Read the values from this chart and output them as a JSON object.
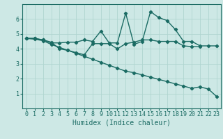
{
  "background_color": "#cde8e5",
  "grid_color": "#b0d5d0",
  "line_color": "#1a6b63",
  "marker": "D",
  "markersize": 2.2,
  "linewidth": 1.0,
  "xlabel": "Humidex (Indice chaleur)",
  "xlabel_fontsize": 7,
  "tick_fontsize": 6,
  "xlim": [
    -0.5,
    23.5
  ],
  "ylim": [
    0,
    7
  ],
  "yticks": [
    1,
    2,
    3,
    4,
    5,
    6
  ],
  "xticks": [
    0,
    1,
    2,
    3,
    4,
    5,
    6,
    7,
    8,
    9,
    10,
    11,
    12,
    13,
    14,
    15,
    16,
    17,
    18,
    19,
    20,
    21,
    22,
    23
  ],
  "line1_x": [
    0,
    1,
    2,
    3,
    4,
    5,
    6,
    7,
    8,
    9,
    10,
    11,
    12,
    13,
    14,
    15,
    16,
    17,
    18,
    19,
    20,
    21
  ],
  "line1_y": [
    4.7,
    4.7,
    4.6,
    4.45,
    4.0,
    3.9,
    3.75,
    3.6,
    4.35,
    4.35,
    4.35,
    4.0,
    4.35,
    4.45,
    4.6,
    4.6,
    4.5,
    4.5,
    4.5,
    4.2,
    4.15,
    4.15
  ],
  "line2_x": [
    0,
    1,
    2,
    3,
    4,
    5,
    6,
    7,
    8,
    9,
    10,
    11,
    12,
    13,
    14,
    15,
    16,
    17,
    18,
    19,
    20,
    21,
    22,
    23
  ],
  "line2_y": [
    4.7,
    4.7,
    4.6,
    4.4,
    4.4,
    4.45,
    4.45,
    4.6,
    4.5,
    5.2,
    4.4,
    4.4,
    6.4,
    4.3,
    4.5,
    6.5,
    6.1,
    5.9,
    5.3,
    4.5,
    4.5,
    4.2,
    4.2,
    4.2
  ],
  "line3_x": [
    0,
    1,
    2,
    3,
    4,
    5,
    6,
    7,
    8,
    9,
    10,
    11,
    12,
    13,
    14,
    15,
    16,
    17,
    18,
    19,
    20,
    21,
    22,
    23
  ],
  "line3_y": [
    4.7,
    4.65,
    4.55,
    4.3,
    4.1,
    3.9,
    3.7,
    3.5,
    3.3,
    3.1,
    2.9,
    2.7,
    2.5,
    2.4,
    2.25,
    2.1,
    1.95,
    1.8,
    1.65,
    1.5,
    1.35,
    1.45,
    1.3,
    0.8
  ]
}
